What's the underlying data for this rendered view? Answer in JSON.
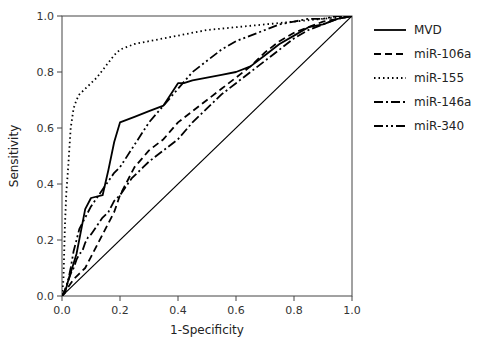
{
  "chart_data": {
    "type": "line",
    "xlabel": "1-Specificity",
    "ylabel": "Sensitivity",
    "xlim": [
      0.0,
      1.0
    ],
    "ylim": [
      0.0,
      1.0
    ],
    "xticks": [
      {
        "value": 0.0,
        "label": "0.0"
      },
      0.2,
      0.4,
      0.6,
      0.8,
      {
        "value": 1.0,
        "label": "1.0"
      }
    ],
    "yticks": [
      {
        "value": 0.0,
        "label": "0.0"
      },
      0.2,
      0.4,
      0.6,
      0.8,
      {
        "value": 1.0,
        "label": "1.0"
      }
    ],
    "grid": false,
    "legend": "right",
    "series": [
      {
        "x": [
          0.0,
          1.0
        ],
        "values": [
          0.0,
          1.0
        ],
        "color": "#000000",
        "line_style": "solid"
      },
      {
        "name": "MVD",
        "color": "#000000",
        "line_style": "solid",
        "x": [
          0.0,
          0.01,
          0.02,
          0.05,
          0.08,
          0.1,
          0.14,
          0.16,
          0.18,
          0.2,
          0.25,
          0.3,
          0.35,
          0.4,
          0.41,
          0.42,
          0.45,
          0.5,
          0.55,
          0.6,
          0.65,
          0.7,
          0.75,
          0.8,
          0.85,
          0.9,
          0.95,
          1.0
        ],
        "values": [
          0.0,
          0.01,
          0.05,
          0.15,
          0.31,
          0.35,
          0.36,
          0.45,
          0.55,
          0.62,
          0.64,
          0.66,
          0.68,
          0.76,
          0.76,
          0.76,
          0.77,
          0.78,
          0.79,
          0.8,
          0.82,
          0.86,
          0.9,
          0.93,
          0.96,
          0.97,
          0.99,
          1.0
        ]
      },
      {
        "name": "miR-106a",
        "color": "#000000",
        "line_style": "dashed",
        "x": [
          0.0,
          0.02,
          0.04,
          0.06,
          0.08,
          0.1,
          0.12,
          0.14,
          0.16,
          0.18,
          0.2,
          0.25,
          0.3,
          0.35,
          0.4,
          0.45,
          0.5,
          0.55,
          0.6,
          0.65,
          0.7,
          0.75,
          0.8,
          0.85,
          0.9,
          0.95,
          1.0
        ],
        "values": [
          0.0,
          0.03,
          0.06,
          0.08,
          0.1,
          0.14,
          0.18,
          0.22,
          0.26,
          0.3,
          0.36,
          0.46,
          0.52,
          0.56,
          0.62,
          0.66,
          0.7,
          0.74,
          0.78,
          0.82,
          0.87,
          0.91,
          0.94,
          0.96,
          0.98,
          0.99,
          1.0
        ]
      },
      {
        "name": "miR-155",
        "color": "#000000",
        "line_style": "dotted",
        "x": [
          0.0,
          0.005,
          0.01,
          0.015,
          0.02,
          0.03,
          0.04,
          0.05,
          0.06,
          0.08,
          0.1,
          0.12,
          0.15,
          0.18,
          0.2,
          0.25,
          0.3,
          0.4,
          0.5,
          0.6,
          0.7,
          0.8,
          0.9,
          1.0
        ],
        "values": [
          0.0,
          0.06,
          0.25,
          0.37,
          0.44,
          0.6,
          0.67,
          0.7,
          0.72,
          0.74,
          0.76,
          0.78,
          0.82,
          0.86,
          0.88,
          0.9,
          0.91,
          0.93,
          0.95,
          0.96,
          0.97,
          0.98,
          0.99,
          1.0
        ]
      },
      {
        "name": "miR-146a",
        "color": "#000000",
        "line_style": "dashdot",
        "x": [
          0.0,
          0.01,
          0.02,
          0.03,
          0.04,
          0.05,
          0.06,
          0.07,
          0.08,
          0.09,
          0.1,
          0.12,
          0.14,
          0.16,
          0.18,
          0.2,
          0.22,
          0.24,
          0.26,
          0.28,
          0.3,
          0.35,
          0.4,
          0.45,
          0.5,
          0.55,
          0.6,
          0.65,
          0.7,
          0.75,
          0.8,
          0.85,
          0.9,
          0.95,
          1.0
        ],
        "values": [
          0.0,
          0.02,
          0.05,
          0.08,
          0.1,
          0.13,
          0.15,
          0.16,
          0.19,
          0.21,
          0.22,
          0.25,
          0.28,
          0.3,
          0.34,
          0.36,
          0.39,
          0.42,
          0.44,
          0.46,
          0.48,
          0.52,
          0.56,
          0.62,
          0.67,
          0.72,
          0.76,
          0.8,
          0.84,
          0.88,
          0.92,
          0.95,
          0.97,
          0.99,
          1.0
        ]
      },
      {
        "name": "miR-340",
        "color": "#000000",
        "line_style": "dashdotdot",
        "x": [
          0.0,
          0.01,
          0.02,
          0.03,
          0.04,
          0.05,
          0.06,
          0.07,
          0.08,
          0.09,
          0.1,
          0.12,
          0.14,
          0.16,
          0.18,
          0.2,
          0.25,
          0.3,
          0.35,
          0.4,
          0.45,
          0.5,
          0.55,
          0.6,
          0.65,
          0.7,
          0.75,
          0.8,
          0.85,
          0.9,
          0.95,
          1.0
        ],
        "values": [
          0.0,
          0.02,
          0.05,
          0.1,
          0.16,
          0.2,
          0.24,
          0.26,
          0.28,
          0.3,
          0.32,
          0.35,
          0.38,
          0.41,
          0.44,
          0.46,
          0.54,
          0.62,
          0.68,
          0.74,
          0.8,
          0.84,
          0.88,
          0.91,
          0.93,
          0.95,
          0.97,
          0.98,
          0.99,
          0.99,
          1.0,
          1.0
        ]
      }
    ]
  }
}
